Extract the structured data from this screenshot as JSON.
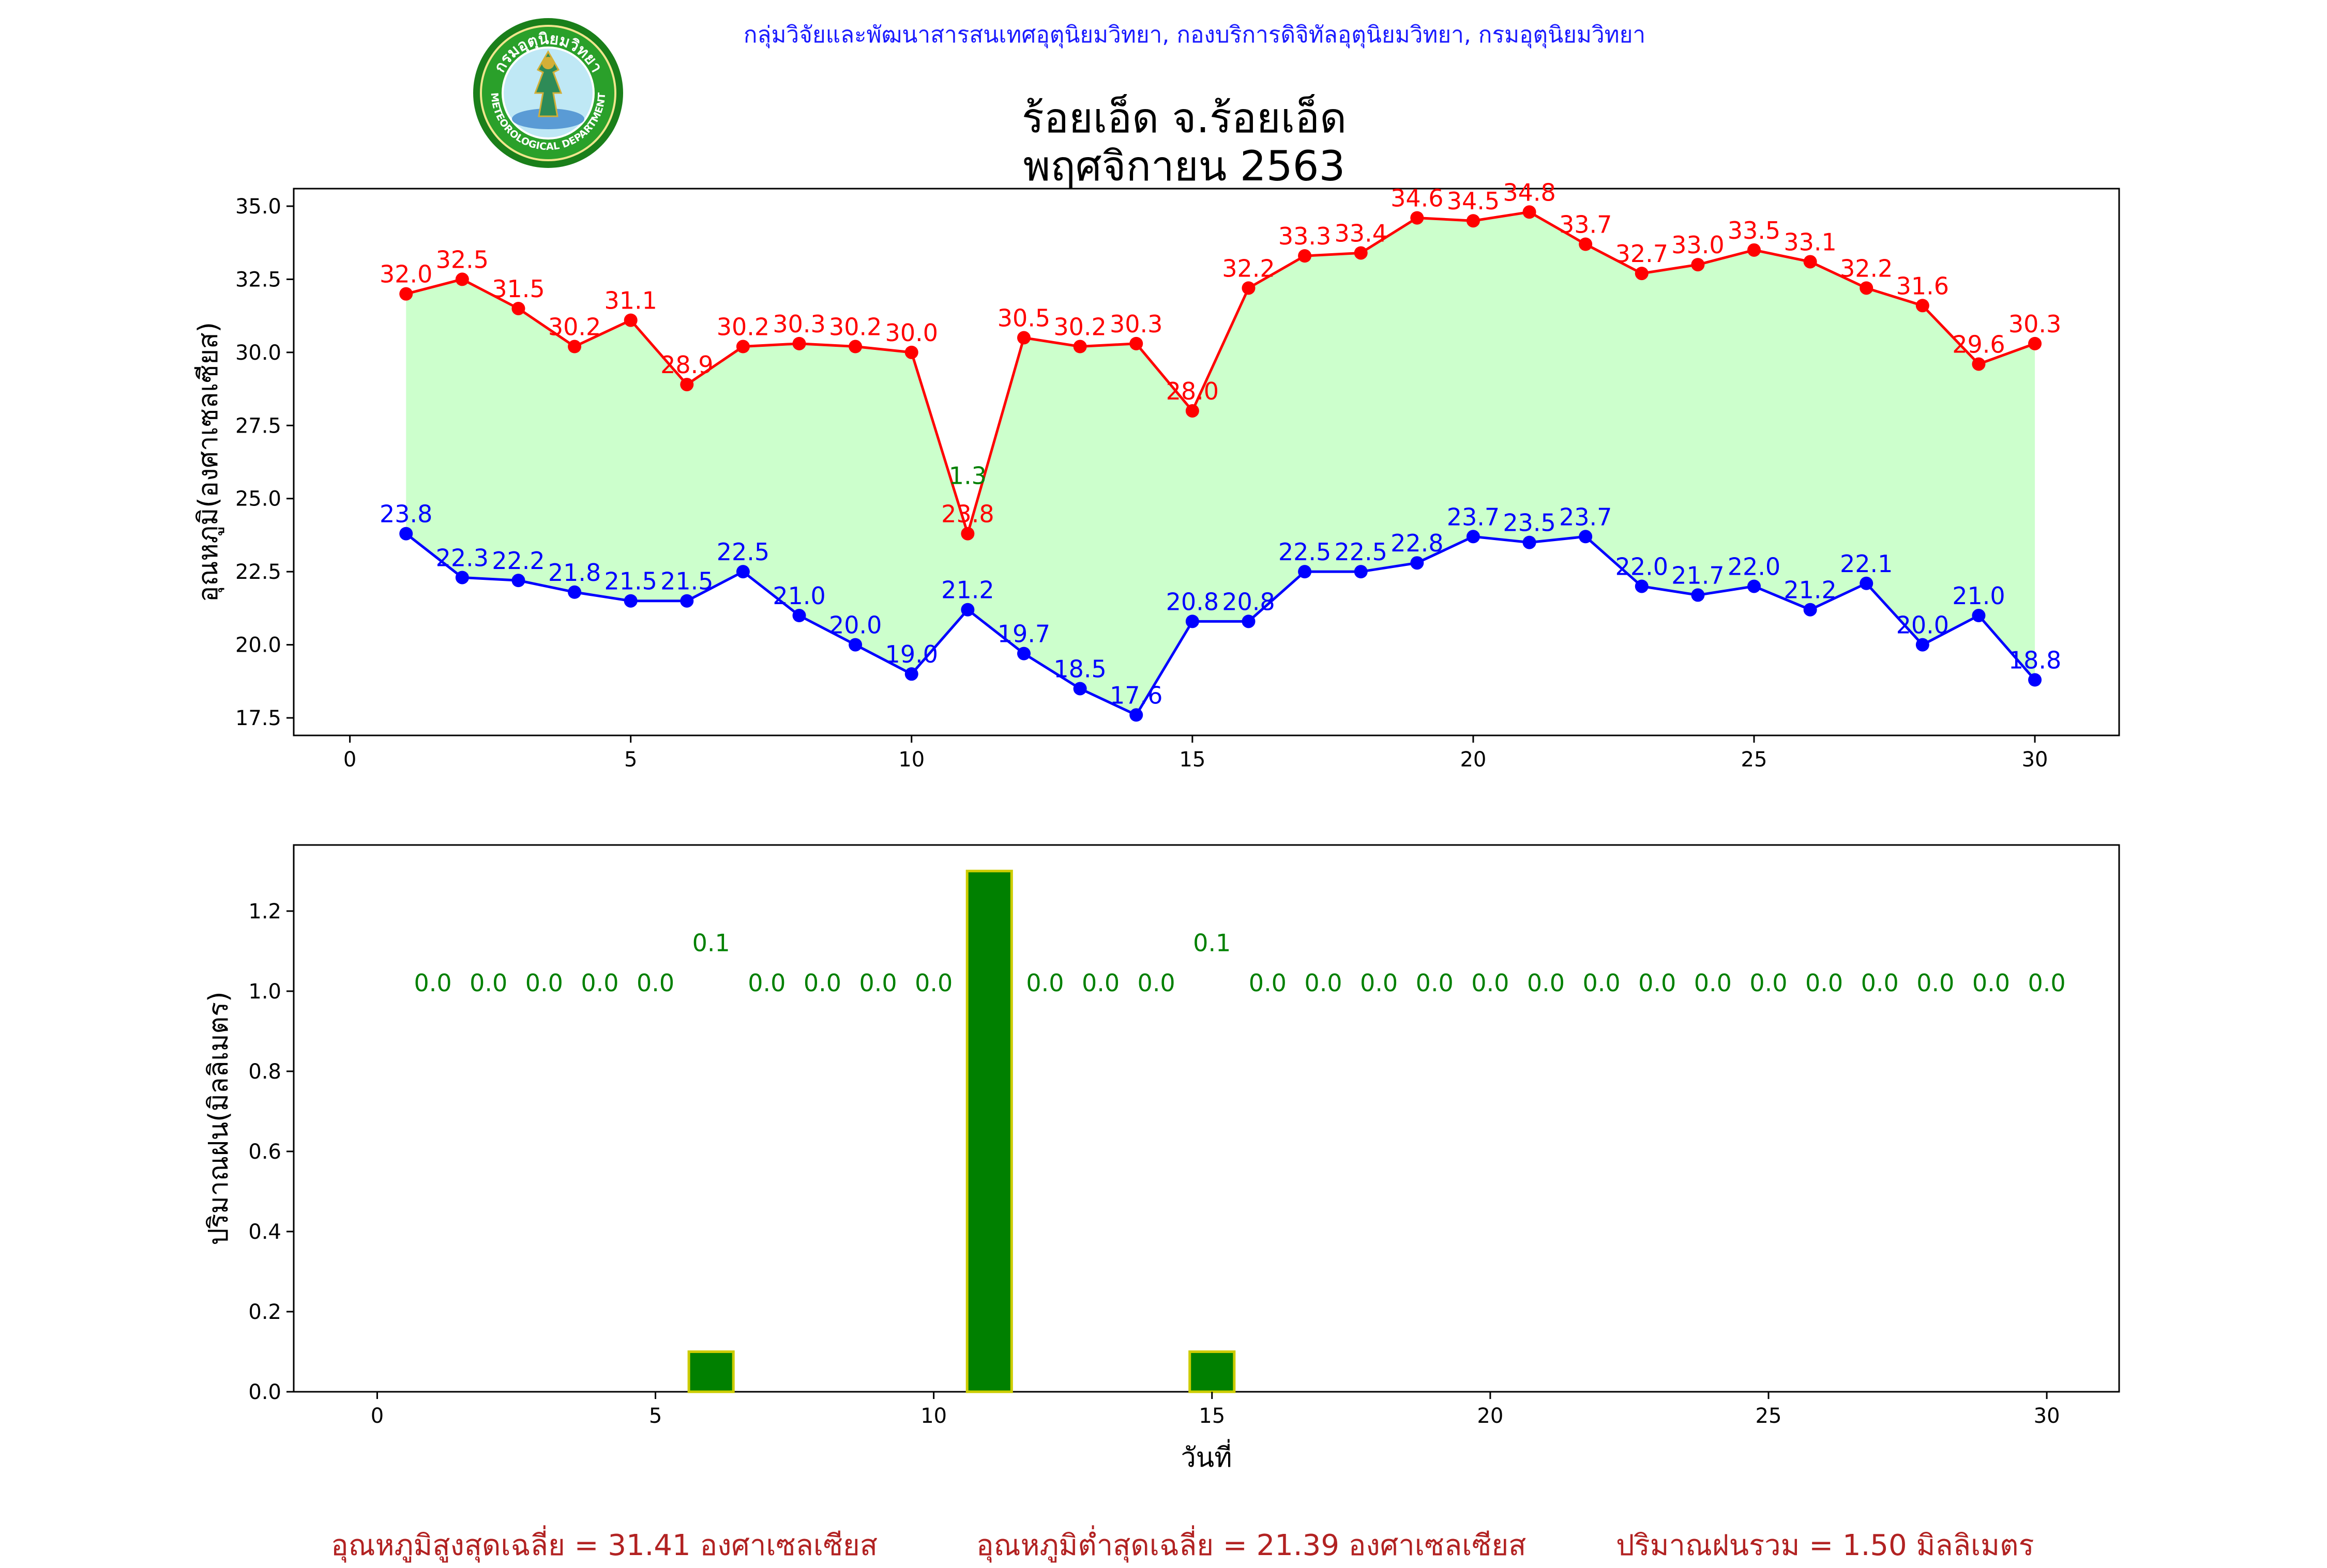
{
  "header": {
    "agency": "กลุ่มวิจัยและพัฒนาสารสนเทศอุตุนิยมวิทยา, กองบริการดิจิทัลอุตุนิยมวิทยา, กรมอุตุนิยมวิทยา",
    "title_line1": "ร้อยเอ็ด จ.ร้อยเอ็ด",
    "title_line2": "พฤศจิกายน 2563",
    "logo_text_top": "กรมอุตุนิยมวิทยา",
    "logo_text_bottom": "METEOROLOGICAL DEPARTMENT"
  },
  "colors": {
    "max": "#ff0000",
    "min": "#0000ff",
    "fill": "#ccffcc",
    "rain_bar": "#008000",
    "rain_edge": "#cccc00",
    "rain_label": "#008000",
    "footer": "#b22222"
  },
  "chart_data": [
    {
      "type": "line",
      "x": [
        1,
        2,
        3,
        4,
        5,
        6,
        7,
        8,
        9,
        10,
        11,
        12,
        13,
        14,
        15,
        16,
        17,
        18,
        19,
        20,
        21,
        22,
        23,
        24,
        25,
        26,
        27,
        28,
        29,
        30
      ],
      "series": [
        {
          "values": [
            32.0,
            32.5,
            31.5,
            30.2,
            31.1,
            28.9,
            30.2,
            30.3,
            30.2,
            30.0,
            23.8,
            30.5,
            30.2,
            30.3,
            28.0,
            32.2,
            33.3,
            33.4,
            34.6,
            34.5,
            34.8,
            33.7,
            32.7,
            33.0,
            33.5,
            33.1,
            32.2,
            31.6,
            29.6,
            30.3
          ],
          "color": "#ff0000"
        },
        {
          "values": [
            23.8,
            22.3,
            22.2,
            21.8,
            21.5,
            21.5,
            22.5,
            21.0,
            20.0,
            19.0,
            21.2,
            19.7,
            18.5,
            17.6,
            20.8,
            20.8,
            22.5,
            22.5,
            22.8,
            23.7,
            23.5,
            23.7,
            22.0,
            21.7,
            22.0,
            21.2,
            22.1,
            20.0,
            21.0,
            18.8
          ],
          "color": "#0000ff"
        }
      ],
      "annotations": [
        {
          "x": 11,
          "text": "1.3"
        }
      ],
      "ylabel": "อุณหภูมิ(องศาเซลเซียส)",
      "xticks": [
        0,
        5,
        10,
        15,
        20,
        25,
        30
      ],
      "yticks": [
        "17.5",
        "20.0",
        "22.5",
        "25.0",
        "27.5",
        "30.0",
        "32.5",
        "35.0"
      ],
      "xlim": [
        -1,
        31.5
      ],
      "ylim": [
        16.9,
        35.6
      ],
      "grid": false
    },
    {
      "type": "bar",
      "x": [
        1,
        2,
        3,
        4,
        5,
        6,
        7,
        8,
        9,
        10,
        11,
        12,
        13,
        14,
        15,
        16,
        17,
        18,
        19,
        20,
        21,
        22,
        23,
        24,
        25,
        26,
        27,
        28,
        29,
        30
      ],
      "values": [
        0.0,
        0.0,
        0.0,
        0.0,
        0.0,
        0.1,
        0.0,
        0.0,
        0.0,
        0.0,
        1.3,
        0.0,
        0.0,
        0.0,
        0.1,
        0.0,
        0.0,
        0.0,
        0.0,
        0.0,
        0.0,
        0.0,
        0.0,
        0.0,
        0.0,
        0.0,
        0.0,
        0.0,
        0.0,
        0.0
      ],
      "value_labels": [
        "0.0",
        "0.0",
        "0.0",
        "0.0",
        "0.0",
        "0.1",
        "0.0",
        "0.0",
        "0.0",
        "0.0",
        "",
        "0.0",
        "0.0",
        "0.0",
        "0.1",
        "0.0",
        "0.0",
        "0.0",
        "0.0",
        "0.0",
        "0.0",
        "0.0",
        "0.0",
        "0.0",
        "0.0",
        "0.0",
        "0.0",
        "0.0",
        "0.0",
        "0.0"
      ],
      "xlabel": "วันที่",
      "ylabel": "ปริมาณฝน(มิลลิเมตร)",
      "xticks": [
        0,
        5,
        10,
        15,
        20,
        25,
        30
      ],
      "yticks": [
        "0.0",
        "0.2",
        "0.4",
        "0.6",
        "0.8",
        "1.0",
        "1.2"
      ],
      "xlim": [
        -1.5,
        31.3
      ],
      "ylim": [
        0,
        1.365
      ],
      "grid": false
    }
  ],
  "footer": {
    "avg_max": "อุณหภูมิสูงสุดเฉลี่ย = 31.41 องศาเซลเซียส",
    "avg_min": "อุณหภูมิต่ำสุดเฉลี่ย = 21.39 องศาเซลเซียส",
    "total_rain": "ปริมาณฝนรวม = 1.50 มิลลิเมตร"
  }
}
